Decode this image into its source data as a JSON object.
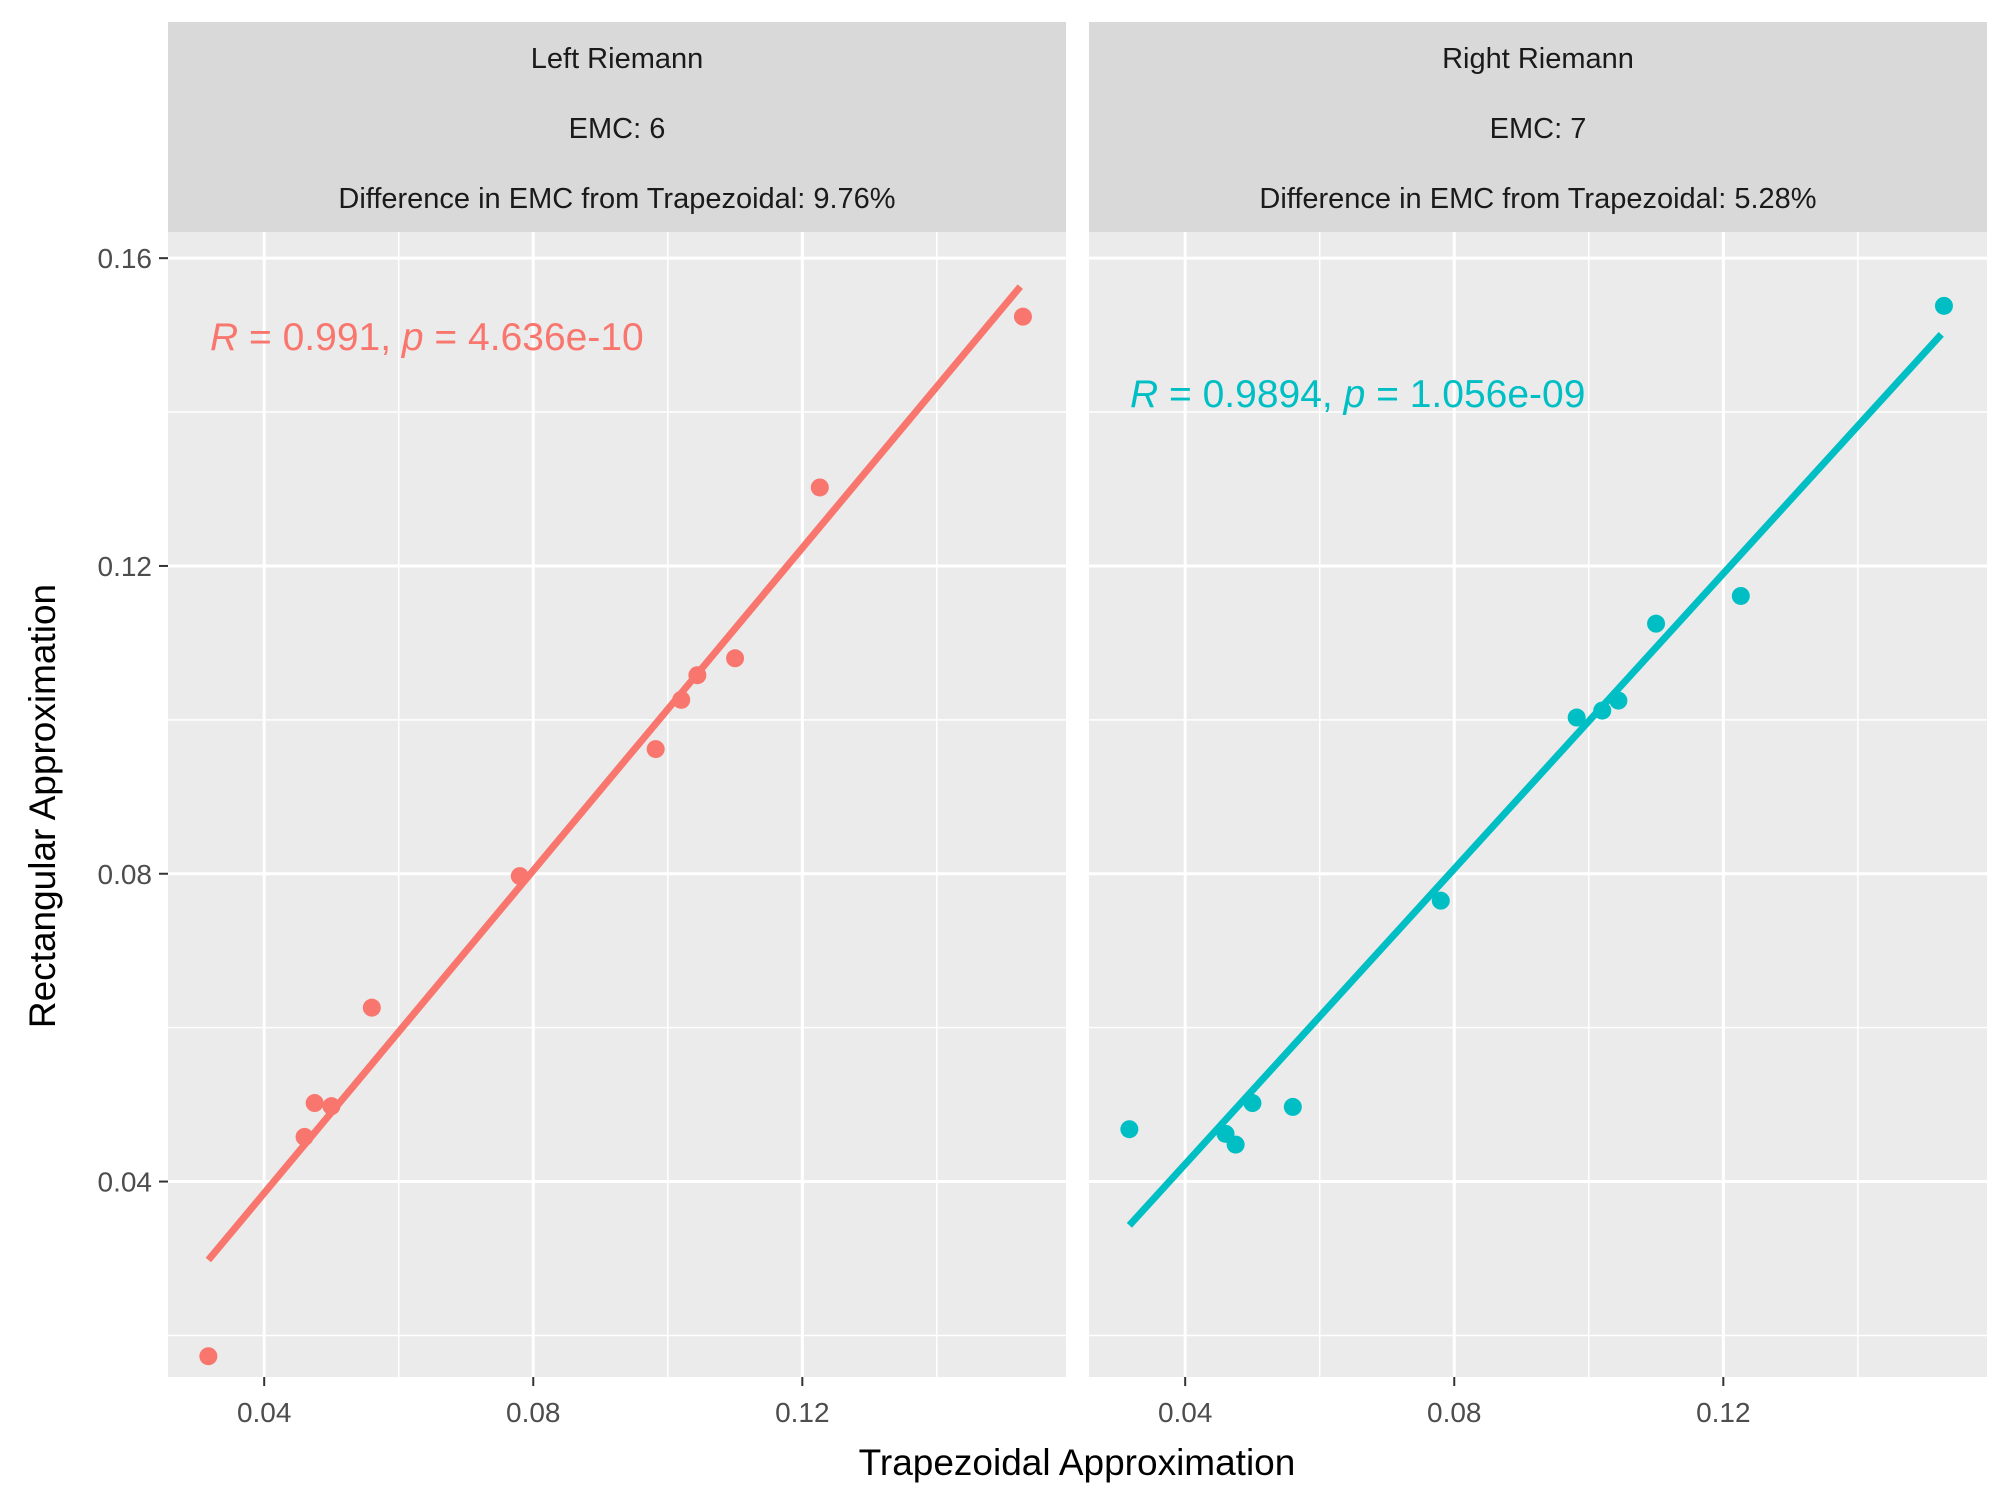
{
  "chart_data": {
    "type": "scatter",
    "xlabel": "Trapezoidal Approximation",
    "ylabel": "Rectangular Approximation",
    "x_ticks": [
      "0.04",
      "0.08",
      "0.12"
    ],
    "y_ticks": [
      "0.04",
      "0.08",
      "0.12",
      "0.16"
    ],
    "x_tick_values": [
      0.04,
      0.08,
      0.12
    ],
    "y_tick_values": [
      0.04,
      0.08,
      0.12,
      0.16
    ],
    "xlim": [
      0.0257,
      0.1592
    ],
    "ylim": [
      0.0146,
      0.1634
    ],
    "grid": true,
    "panels": [
      {
        "strip": [
          "Left Riemann",
          "EMC: 6",
          "Difference in EMC from Trapezoidal: 9.76%"
        ],
        "color": "#F8766D",
        "annotation": {
          "r_symbol": "R",
          "r_text": " = 0.991, ",
          "p_symbol": "p",
          "p_text": " = 4.636e-10"
        },
        "points": [
          {
            "x": 0.0317,
            "y": 0.0173
          },
          {
            "x": 0.046,
            "y": 0.0458
          },
          {
            "x": 0.0475,
            "y": 0.0502
          },
          {
            "x": 0.05,
            "y": 0.0498
          },
          {
            "x": 0.056,
            "y": 0.0626
          },
          {
            "x": 0.078,
            "y": 0.0797
          },
          {
            "x": 0.0982,
            "y": 0.0962
          },
          {
            "x": 0.102,
            "y": 0.1026
          },
          {
            "x": 0.1044,
            "y": 0.1058
          },
          {
            "x": 0.11,
            "y": 0.108
          },
          {
            "x": 0.1226,
            "y": 0.1302
          },
          {
            "x": 0.1528,
            "y": 0.1524
          }
        ],
        "fit": {
          "x": [
            0.0317,
            0.1524
          ],
          "y": [
            0.0298,
            0.1563
          ]
        }
      },
      {
        "strip": [
          "Right Riemann",
          "EMC: 7",
          "Difference in EMC from Trapezoidal: 5.28%"
        ],
        "color": "#00BFC4",
        "annotation": {
          "r_symbol": "R",
          "r_text": " = 0.9894, ",
          "p_symbol": "p",
          "p_text": " = 1.056e-09"
        },
        "points": [
          {
            "x": 0.0317,
            "y": 0.0468
          },
          {
            "x": 0.046,
            "y": 0.0462
          },
          {
            "x": 0.0475,
            "y": 0.0448
          },
          {
            "x": 0.05,
            "y": 0.0502
          },
          {
            "x": 0.056,
            "y": 0.0497
          },
          {
            "x": 0.078,
            "y": 0.0765
          },
          {
            "x": 0.0982,
            "y": 0.1003
          },
          {
            "x": 0.102,
            "y": 0.1012
          },
          {
            "x": 0.1044,
            "y": 0.1025
          },
          {
            "x": 0.11,
            "y": 0.1125
          },
          {
            "x": 0.1226,
            "y": 0.1161
          },
          {
            "x": 0.1528,
            "y": 0.1538
          }
        ],
        "fit": {
          "x": [
            0.0317,
            0.1524
          ],
          "y": [
            0.0343,
            0.1501
          ]
        }
      }
    ]
  }
}
